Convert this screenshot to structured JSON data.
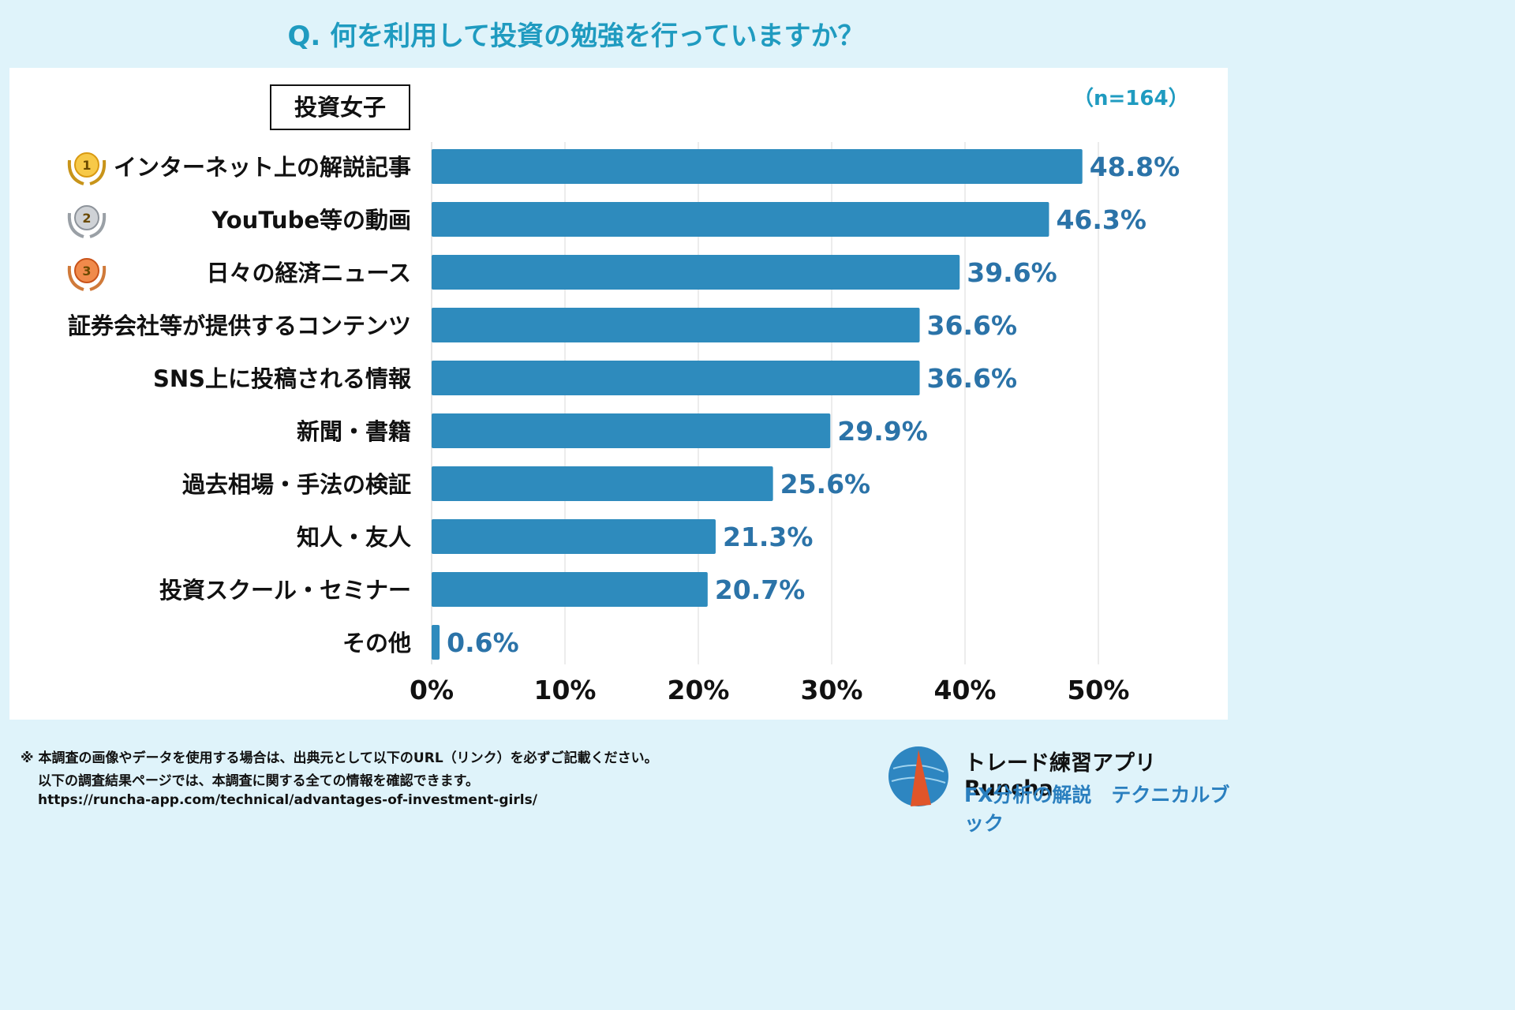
{
  "title": "Q. 何を利用して投資の勉強を行っていますか？",
  "group_label": "投資女子",
  "sample_size": "（n=164）",
  "colors": {
    "bar": "#2e8bbd",
    "value_text": "#2b73a8",
    "title": "#1f9bc0",
    "grid": "#d9d9d9"
  },
  "chart_data": {
    "type": "bar",
    "orientation": "horizontal",
    "categories": [
      "インターネット上の解説記事",
      "YouTube等の動画",
      "日々の経済ニュース",
      "証券会社等が提供するコンテンツ",
      "SNS上に投稿される情報",
      "新聞・書籍",
      "過去相場・手法の検証",
      "知人・友人",
      "投資スクール・セミナー",
      "その他"
    ],
    "values": [
      48.8,
      46.3,
      39.6,
      36.6,
      36.6,
      29.9,
      25.6,
      21.3,
      20.7,
      0.6
    ],
    "value_labels": [
      "48.8%",
      "46.3%",
      "39.6%",
      "36.6%",
      "36.6%",
      "29.9%",
      "25.6%",
      "21.3%",
      "20.7%",
      "0.6%"
    ],
    "rank_badges": [
      "1",
      "2",
      "3"
    ],
    "xlim": [
      0,
      50
    ],
    "xticks": [
      "0%",
      "10%",
      "20%",
      "30%",
      "40%",
      "50%"
    ],
    "grid": true
  },
  "footer": {
    "note_line1": "※ 本調査の画像やデータを使用する場合は、出典元として以下のURL（リンク）を必ずご記載ください。",
    "note_line2": "以下の調査結果ページでは、本調査に関する全ての情報を確認できます。",
    "url": "https://runcha-app.com/technical/advantages-of-investment-girls/",
    "brand_name": "トレード練習アプリ　Runcha",
    "brand_subtitle": "FX分析の解説　テクニカルブック"
  }
}
